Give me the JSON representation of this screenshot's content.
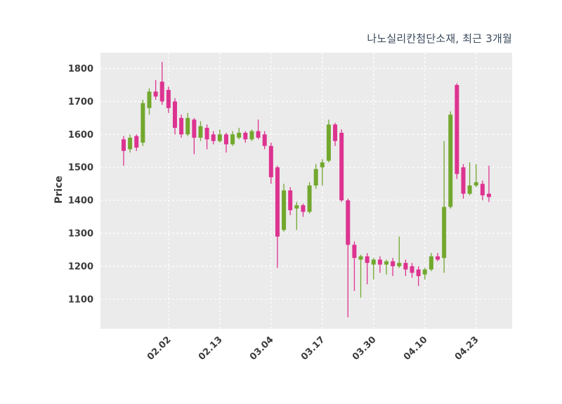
{
  "title": "나노실리칸첨단소재, 최근 3개월",
  "chart_data": {
    "type": "candlestick",
    "title": "나노실리칸첨단소재, 최근 3개월",
    "xlabel": "",
    "ylabel": "Price",
    "ylim": [
      1010,
      1848
    ],
    "y_ticks": [
      1100,
      1200,
      1300,
      1400,
      1500,
      1600,
      1700,
      1800
    ],
    "x_tick_labels": [
      "02.02",
      "02.13",
      "03.04",
      "03.17",
      "03.30",
      "04.10",
      "04.23"
    ],
    "x_tick_indices": [
      7,
      15,
      23,
      31,
      39,
      47,
      55
    ],
    "legend": "none",
    "grid": {
      "show": true,
      "style": "dashed",
      "color": "#ffffff"
    },
    "colors": {
      "up": "#72a82e",
      "down": "#dd3390",
      "plot_bg": "#ebebeb",
      "grid": "#ffffff",
      "text": "#3c3c3c",
      "title": "#3b4a5c"
    },
    "candle_format": [
      "open",
      "high",
      "low",
      "close"
    ],
    "candles": [
      [
        1585,
        1595,
        1505,
        1550
      ],
      [
        1555,
        1600,
        1545,
        1590
      ],
      [
        1595,
        1600,
        1550,
        1560
      ],
      [
        1575,
        1705,
        1565,
        1695
      ],
      [
        1680,
        1740,
        1660,
        1730
      ],
      [
        1730,
        1765,
        1705,
        1715
      ],
      [
        1760,
        1820,
        1690,
        1700
      ],
      [
        1735,
        1745,
        1665,
        1680
      ],
      [
        1700,
        1710,
        1600,
        1620
      ],
      [
        1650,
        1660,
        1590,
        1600
      ],
      [
        1600,
        1665,
        1595,
        1650
      ],
      [
        1645,
        1650,
        1540,
        1590
      ],
      [
        1590,
        1640,
        1580,
        1625
      ],
      [
        1620,
        1630,
        1555,
        1585
      ],
      [
        1600,
        1610,
        1570,
        1580
      ],
      [
        1580,
        1615,
        1575,
        1600
      ],
      [
        1600,
        1605,
        1545,
        1570
      ],
      [
        1570,
        1610,
        1565,
        1600
      ],
      [
        1590,
        1620,
        1585,
        1605
      ],
      [
        1605,
        1610,
        1575,
        1585
      ],
      [
        1585,
        1615,
        1580,
        1610
      ],
      [
        1610,
        1645,
        1585,
        1590
      ],
      [
        1600,
        1610,
        1555,
        1565
      ],
      [
        1565,
        1575,
        1450,
        1470
      ],
      [
        1500,
        1505,
        1195,
        1290
      ],
      [
        1310,
        1450,
        1305,
        1430
      ],
      [
        1430,
        1440,
        1355,
        1370
      ],
      [
        1375,
        1395,
        1310,
        1385
      ],
      [
        1385,
        1390,
        1350,
        1365
      ],
      [
        1365,
        1455,
        1360,
        1445
      ],
      [
        1445,
        1510,
        1435,
        1495
      ],
      [
        1500,
        1525,
        1445,
        1515
      ],
      [
        1520,
        1645,
        1515,
        1630
      ],
      [
        1630,
        1635,
        1565,
        1580
      ],
      [
        1605,
        1615,
        1395,
        1400
      ],
      [
        1400,
        1405,
        1045,
        1265
      ],
      [
        1265,
        1275,
        1125,
        1225
      ],
      [
        1220,
        1235,
        1105,
        1230
      ],
      [
        1230,
        1240,
        1145,
        1210
      ],
      [
        1205,
        1225,
        1160,
        1220
      ],
      [
        1220,
        1230,
        1180,
        1205
      ],
      [
        1205,
        1220,
        1175,
        1215
      ],
      [
        1215,
        1225,
        1170,
        1200
      ],
      [
        1200,
        1290,
        1195,
        1210
      ],
      [
        1210,
        1220,
        1170,
        1190
      ],
      [
        1200,
        1210,
        1165,
        1180
      ],
      [
        1190,
        1200,
        1140,
        1170
      ],
      [
        1175,
        1195,
        1160,
        1190
      ],
      [
        1190,
        1240,
        1185,
        1230
      ],
      [
        1230,
        1240,
        1215,
        1220
      ],
      [
        1225,
        1580,
        1180,
        1380
      ],
      [
        1380,
        1670,
        1375,
        1660
      ],
      [
        1750,
        1755,
        1465,
        1480
      ],
      [
        1500,
        1510,
        1405,
        1420
      ],
      [
        1420,
        1515,
        1415,
        1445
      ],
      [
        1445,
        1510,
        1440,
        1455
      ],
      [
        1450,
        1460,
        1400,
        1415
      ],
      [
        1420,
        1505,
        1395,
        1410
      ]
    ]
  }
}
